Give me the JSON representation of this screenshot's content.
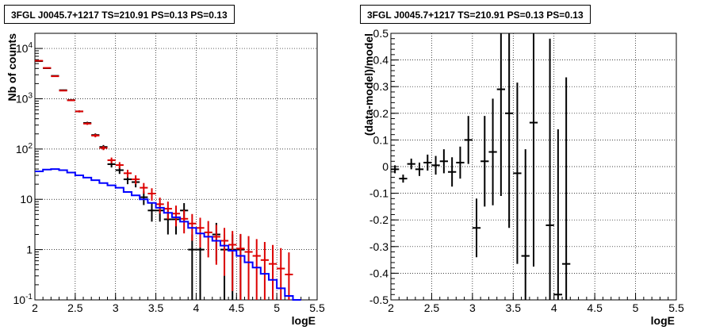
{
  "chart_data": [
    {
      "type": "scatter",
      "title": "3FGL J0045.7+1217 TS=210.91 PS=0.13 PS=0.13",
      "xlabel": "logE",
      "ylabel": "Nb of counts",
      "xlim": [
        2,
        5.5
      ],
      "ylim": [
        0.1,
        20000
      ],
      "yscale": "log",
      "grid": true,
      "x_ticks": [
        "2",
        "2.5",
        "3",
        "3.5",
        "4",
        "4.5",
        "5",
        "5.5"
      ],
      "y_ticks": [
        {
          "base": "10",
          "exp": "-1"
        },
        {
          "base": "1",
          "exp": ""
        },
        {
          "base": "10",
          "exp": ""
        },
        {
          "base": "10",
          "exp": "2"
        },
        {
          "base": "10",
          "exp": "3"
        },
        {
          "base": "10",
          "exp": "4"
        }
      ],
      "series": [
        {
          "color": "#000000",
          "x": [
            2.05,
            2.15,
            2.25,
            2.35,
            2.45,
            2.55,
            2.65,
            2.75,
            2.85,
            2.95,
            3.05,
            3.15,
            3.25,
            3.35,
            3.45,
            3.55,
            3.65,
            3.75,
            3.85,
            3.95,
            4.05,
            4.15,
            4.25,
            4.35,
            4.45,
            4.55
          ],
          "y": [
            5600,
            4050,
            2850,
            1480,
            940,
            560,
            330,
            190,
            110,
            50,
            38,
            25,
            22,
            11,
            6,
            6,
            4,
            4,
            6,
            1,
            1,
            0,
            2,
            1,
            1,
            1
          ],
          "yerr_low": [
            75,
            64,
            53,
            38,
            31,
            24,
            18,
            14,
            10,
            7,
            6,
            5,
            4.7,
            3.3,
            2.4,
            2.4,
            2,
            2,
            2.4,
            0.99,
            0.99,
            0,
            1.4,
            0.99,
            0.99,
            0.99
          ],
          "yerr_high": [
            75,
            64,
            53,
            38,
            31,
            24,
            18,
            14,
            10,
            7,
            6,
            5,
            4.7,
            3.3,
            2.4,
            2.4,
            2,
            2,
            2.4,
            1,
            1,
            0,
            1.4,
            1,
            1,
            1
          ]
        },
        {
          "color": "#dd0000",
          "x": [
            2.05,
            2.15,
            2.25,
            2.35,
            2.45,
            2.55,
            2.65,
            2.75,
            2.85,
            2.95,
            3.05,
            3.15,
            3.25,
            3.35,
            3.45,
            3.55,
            3.65,
            3.75,
            3.85,
            3.95,
            4.05,
            4.15,
            4.25,
            4.35,
            4.45,
            4.55,
            4.65,
            4.75,
            4.85,
            4.95,
            5.05,
            5.15
          ],
          "y": [
            5700,
            4100,
            2800,
            1450,
            930,
            560,
            320,
            185,
            105,
            60,
            48,
            33,
            25,
            17,
            13,
            8,
            6.5,
            5.2,
            4.1,
            3.3,
            2.7,
            2.2,
            1.8,
            1.5,
            1.25,
            1.05,
            0.9,
            0.75,
            0.62,
            0.52,
            0.42,
            0.32
          ],
          "yerr_low": [
            75,
            64,
            53,
            38,
            30,
            24,
            18,
            14,
            10,
            7.7,
            6.9,
            5.7,
            5,
            4.1,
            3.6,
            2.8,
            2.5,
            2.3,
            2,
            1.8,
            1.6,
            1.5,
            1.3,
            1.2,
            1.1,
            1.0,
            0.8,
            0.65,
            0.52,
            0.42,
            0.32,
            0.22
          ],
          "yerr_high": [
            75,
            64,
            53,
            38,
            30,
            24,
            18,
            14,
            10,
            7.7,
            6.9,
            5.7,
            5,
            4.1,
            3.6,
            2.8,
            2.5,
            2.3,
            2,
            1.8,
            1.6,
            1.5,
            1.3,
            1.2,
            1.1,
            1.0,
            0.95,
            0.87,
            0.8,
            0.72,
            0.65,
            0.56
          ]
        },
        {
          "color": "#0000ff",
          "style": "step",
          "x": [
            2.05,
            2.15,
            2.25,
            2.35,
            2.45,
            2.55,
            2.65,
            2.75,
            2.85,
            2.95,
            3.05,
            3.15,
            3.25,
            3.35,
            3.45,
            3.55,
            3.65,
            3.75,
            3.85,
            3.95,
            4.05,
            4.15,
            4.25,
            4.35,
            4.45,
            4.55,
            4.65,
            4.75,
            4.85,
            4.95,
            5.05,
            5.15,
            5.25
          ],
          "y": [
            36,
            39,
            40,
            38,
            34,
            30,
            27,
            24,
            21,
            19,
            17,
            14,
            12,
            10,
            8.5,
            6.8,
            5.4,
            4.4,
            3.6,
            2.7,
            2.1,
            1.8,
            1.5,
            1.2,
            0.95,
            0.75,
            0.56,
            0.44,
            0.33,
            0.25,
            0.17,
            0.12,
            0.1
          ]
        }
      ]
    },
    {
      "type": "scatter",
      "title": "3FGL J0045.7+1217 TS=210.91 PS=0.13 PS=0.13",
      "xlabel": "logE",
      "ylabel": "(data-model)/model",
      "xlim": [
        2,
        5.5
      ],
      "ylim": [
        -0.5,
        0.5
      ],
      "grid": true,
      "x_ticks": [
        "2",
        "2.5",
        "3",
        "3.5",
        "4",
        "4.5",
        "5",
        "5.5"
      ],
      "y_ticks": [
        "-0.5",
        "-0.4",
        "-0.3",
        "-0.2",
        "-0.1",
        "0",
        "0.1",
        "0.2",
        "0.3",
        "0.4",
        "0.5"
      ],
      "series": [
        {
          "color": "#000000",
          "x": [
            2.05,
            2.15,
            2.25,
            2.35,
            2.45,
            2.55,
            2.65,
            2.75,
            2.85,
            2.95,
            3.05,
            3.15,
            3.25,
            3.35,
            3.45,
            3.55,
            3.65,
            3.75,
            3.95,
            4.05,
            4.15
          ],
          "y": [
            -0.01,
            -0.045,
            0.01,
            -0.01,
            0.015,
            0.005,
            0.02,
            -0.02,
            0.015,
            0.1,
            -0.23,
            0.02,
            0.055,
            0.29,
            0.2,
            -0.025,
            -0.335,
            0.165,
            -0.22,
            -0.48,
            -0.365
          ],
          "yerr": [
            0.015,
            0.015,
            0.02,
            0.025,
            0.03,
            0.035,
            0.045,
            0.055,
            0.06,
            0.09,
            0.11,
            0.17,
            0.2,
            0.4,
            0.43,
            0.34,
            0.4,
            0.54,
            0.7,
            0.62,
            0.7
          ]
        }
      ]
    }
  ]
}
